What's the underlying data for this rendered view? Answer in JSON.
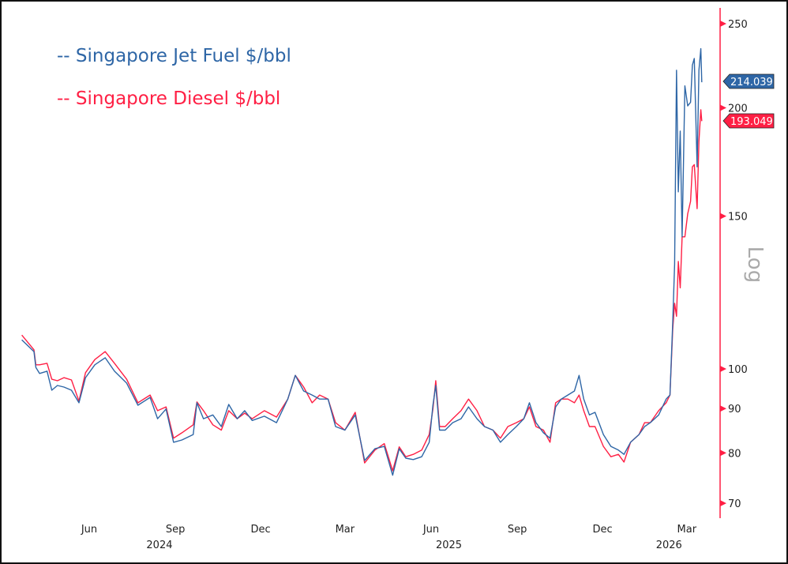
{
  "chart_data": {
    "type": "line",
    "legend": [
      {
        "label": "-- Singapore Jet Fuel $/bbl",
        "color": "#2e66a6"
      },
      {
        "label": "-- Singapore Diesel $/bbl",
        "color": "#ff1f44"
      }
    ],
    "legend_placement": "top-left",
    "y_scale": "log",
    "y_scale_label": "Log",
    "y_axis_side": "right",
    "y_axis_color": "#ff1f44",
    "ylim": [
      68,
      260
    ],
    "yticks": [
      70,
      80,
      90,
      100,
      150,
      200,
      250
    ],
    "xticks": [
      {
        "date": "2024-06-01",
        "label": "Jun"
      },
      {
        "date": "2024-09-01",
        "label": "Sep"
      },
      {
        "date": "2024-12-01",
        "label": "Dec"
      },
      {
        "date": "2025-03-01",
        "label": "Mar"
      },
      {
        "date": "2025-06-01",
        "label": "Jun"
      },
      {
        "date": "2025-09-01",
        "label": "Sep"
      },
      {
        "date": "2025-12-01",
        "label": "Dec"
      },
      {
        "date": "2026-03-01",
        "label": "Mar"
      }
    ],
    "year_labels": [
      {
        "date": "2024-08-15",
        "label": "2024"
      },
      {
        "date": "2025-06-20",
        "label": "2025"
      },
      {
        "date": "2026-02-10",
        "label": "2026"
      }
    ],
    "grid": false,
    "last_values": {
      "jet": "214.039",
      "diesel": "193.049"
    },
    "columns": [
      "date",
      "jet_fuel",
      "diesel"
    ],
    "points": [
      [
        "2024-03-21",
        108.0,
        109.4
      ],
      [
        "2024-04-03",
        104.7,
        105.2
      ],
      [
        "2024-04-05",
        100.4,
        101.1
      ],
      [
        "2024-04-09",
        98.8,
        101.1
      ],
      [
        "2024-04-17",
        99.4,
        101.5
      ],
      [
        "2024-04-22",
        94.5,
        97.3
      ],
      [
        "2024-04-28",
        95.7,
        96.9
      ],
      [
        "2024-05-05",
        95.3,
        97.7
      ],
      [
        "2024-05-13",
        94.5,
        97.1
      ],
      [
        "2024-05-21",
        91.4,
        91.8
      ],
      [
        "2024-05-28",
        97.7,
        99.0
      ],
      [
        "2024-06-07",
        101.1,
        102.5
      ],
      [
        "2024-06-18",
        103.0,
        104.7
      ],
      [
        "2024-06-28",
        99.4,
        101.5
      ],
      [
        "2024-07-11",
        96.3,
        97.3
      ],
      [
        "2024-07-23",
        90.8,
        91.4
      ],
      [
        "2024-08-05",
        92.7,
        93.3
      ],
      [
        "2024-08-13",
        87.6,
        89.5
      ],
      [
        "2024-08-22",
        89.9,
        90.4
      ],
      [
        "2024-08-30",
        82.3,
        83.2
      ],
      [
        "2024-09-08",
        82.8,
        84.4
      ],
      [
        "2024-09-20",
        84.0,
        86.2
      ],
      [
        "2024-09-24",
        91.4,
        91.6
      ],
      [
        "2024-10-01",
        87.6,
        89.5
      ],
      [
        "2024-10-11",
        88.5,
        86.2
      ],
      [
        "2024-10-20",
        85.8,
        85.0
      ],
      [
        "2024-10-28",
        91.0,
        89.5
      ],
      [
        "2024-11-06",
        87.6,
        87.6
      ],
      [
        "2024-11-14",
        89.5,
        88.9
      ],
      [
        "2024-11-22",
        87.2,
        87.6
      ],
      [
        "2024-12-05",
        88.2,
        89.5
      ],
      [
        "2024-12-18",
        86.7,
        88.0
      ],
      [
        "2024-12-30",
        92.3,
        92.3
      ],
      [
        "2025-01-07",
        98.3,
        98.3
      ],
      [
        "2025-01-16",
        94.3,
        95.3
      ],
      [
        "2025-01-25",
        93.3,
        91.4
      ],
      [
        "2025-02-02",
        92.3,
        93.3
      ],
      [
        "2025-02-11",
        92.3,
        92.3
      ],
      [
        "2025-02-19",
        85.8,
        86.7
      ],
      [
        "2025-03-01",
        85.0,
        85.0
      ],
      [
        "2025-03-12",
        88.5,
        89.1
      ],
      [
        "2025-03-22",
        78.4,
        77.9
      ],
      [
        "2025-04-02",
        80.9,
        80.6
      ],
      [
        "2025-04-12",
        81.4,
        82.0
      ],
      [
        "2025-04-21",
        75.4,
        76.3
      ],
      [
        "2025-04-28",
        80.9,
        81.3
      ],
      [
        "2025-05-05",
        78.9,
        79.2
      ],
      [
        "2025-05-13",
        78.6,
        79.7
      ],
      [
        "2025-05-22",
        79.2,
        80.6
      ],
      [
        "2025-05-30",
        82.3,
        84.0
      ],
      [
        "2025-06-03",
        90.8,
        89.9
      ],
      [
        "2025-06-06",
        95.7,
        96.9
      ],
      [
        "2025-06-10",
        85.0,
        85.8
      ],
      [
        "2025-06-16",
        85.0,
        85.8
      ],
      [
        "2025-06-24",
        86.7,
        87.6
      ],
      [
        "2025-07-03",
        87.6,
        89.5
      ],
      [
        "2025-07-11",
        90.4,
        92.3
      ],
      [
        "2025-07-20",
        87.6,
        89.5
      ],
      [
        "2025-07-28",
        85.8,
        85.8
      ],
      [
        "2025-08-06",
        85.0,
        85.0
      ],
      [
        "2025-08-14",
        82.3,
        83.2
      ],
      [
        "2025-08-22",
        84.0,
        85.8
      ],
      [
        "2025-08-31",
        85.8,
        86.7
      ],
      [
        "2025-09-08",
        87.6,
        87.6
      ],
      [
        "2025-09-14",
        91.4,
        90.4
      ],
      [
        "2025-09-21",
        86.7,
        85.8
      ],
      [
        "2025-09-29",
        84.4,
        85.0
      ],
      [
        "2025-10-06",
        83.2,
        82.3
      ],
      [
        "2025-10-12",
        90.4,
        91.4
      ],
      [
        "2025-10-18",
        92.3,
        92.3
      ],
      [
        "2025-10-25",
        93.3,
        92.3
      ],
      [
        "2025-11-01",
        94.3,
        91.4
      ],
      [
        "2025-11-06",
        98.3,
        93.3
      ],
      [
        "2025-11-11",
        92.3,
        89.5
      ],
      [
        "2025-11-17",
        88.5,
        85.8
      ],
      [
        "2025-11-23",
        89.1,
        85.8
      ],
      [
        "2025-12-02",
        84.0,
        81.4
      ],
      [
        "2025-12-10",
        81.4,
        79.2
      ],
      [
        "2025-12-18",
        80.6,
        79.7
      ],
      [
        "2025-12-24",
        79.7,
        78.1
      ],
      [
        "2025-12-31",
        82.3,
        82.3
      ],
      [
        "2026-01-09",
        84.0,
        84.0
      ],
      [
        "2026-01-15",
        85.8,
        86.7
      ],
      [
        "2026-01-21",
        86.7,
        86.7
      ],
      [
        "2026-01-30",
        88.5,
        89.5
      ],
      [
        "2026-02-07",
        92.3,
        91.4
      ],
      [
        "2026-02-11",
        93.3,
        93.3
      ],
      [
        "2026-02-14",
        113,
        111
      ],
      [
        "2026-02-16",
        132,
        119
      ],
      [
        "2026-02-18",
        221,
        115
      ],
      [
        "2026-02-20",
        160,
        133
      ],
      [
        "2026-02-22",
        188,
        124
      ],
      [
        "2026-02-24",
        142,
        142
      ],
      [
        "2026-02-27",
        212,
        142
      ],
      [
        "2026-03-02",
        201,
        151
      ],
      [
        "2026-03-05",
        203,
        156
      ],
      [
        "2026-03-07",
        224,
        171
      ],
      [
        "2026-03-09",
        228,
        172
      ],
      [
        "2026-03-12",
        171,
        153
      ],
      [
        "2026-03-14",
        221,
        183
      ],
      [
        "2026-03-16",
        234,
        199
      ],
      [
        "2026-03-17",
        214.039,
        193.049
      ]
    ]
  }
}
